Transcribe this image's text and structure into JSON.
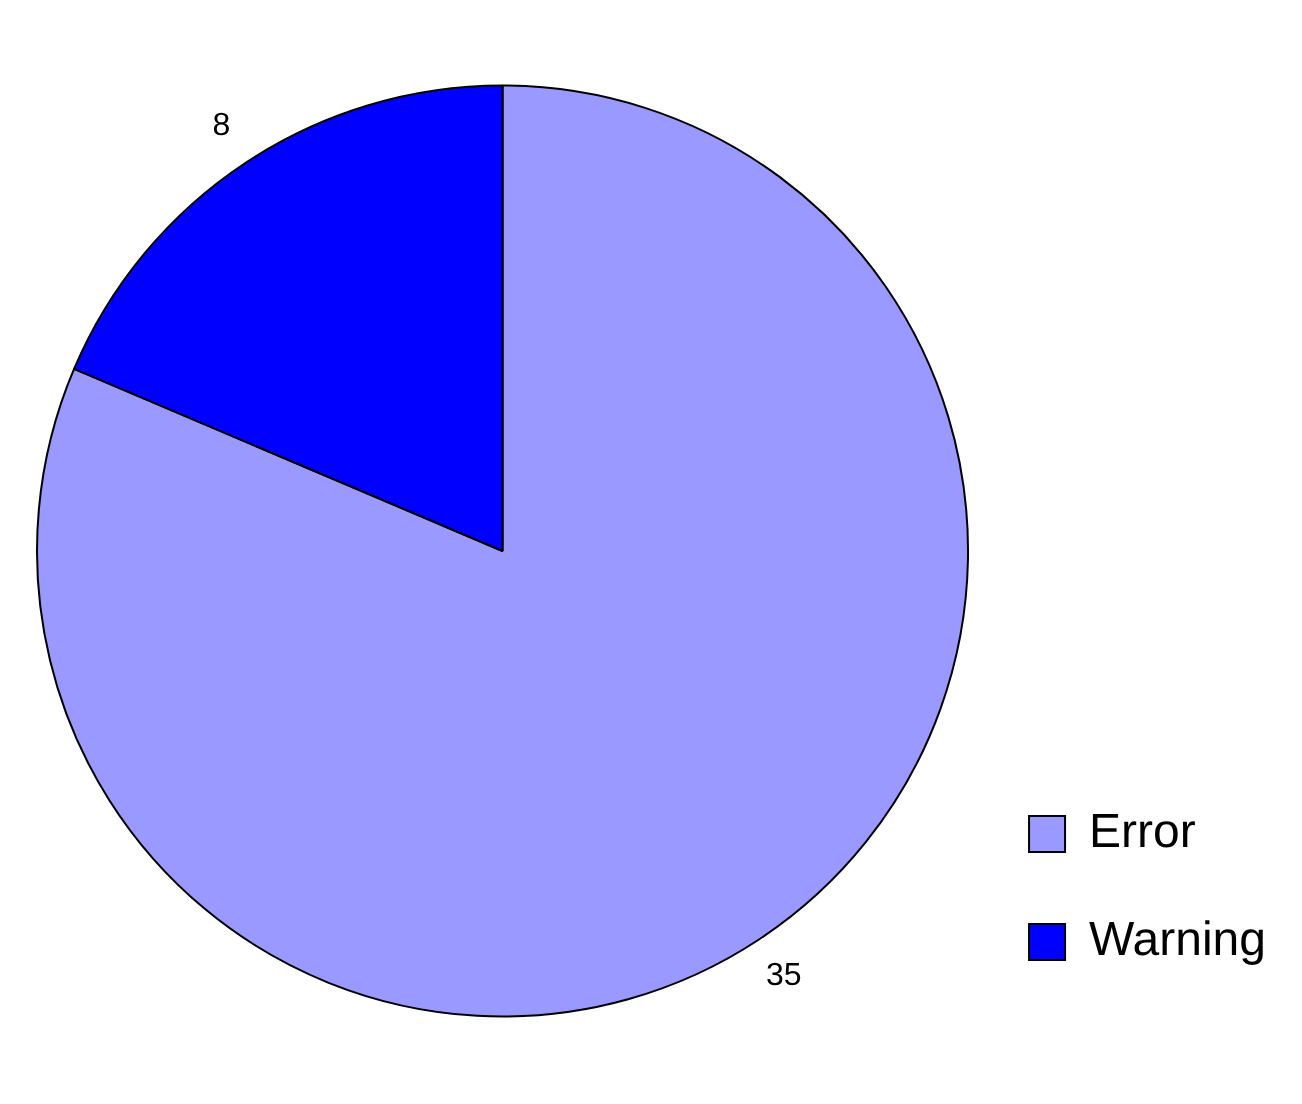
{
  "chart_data": {
    "type": "pie",
    "categories": [
      "Error",
      "Warning"
    ],
    "values": [
      35,
      8
    ],
    "colors": [
      "#9999ff",
      "#0000ff"
    ],
    "data_labels": true,
    "legend": "bottom right"
  }
}
